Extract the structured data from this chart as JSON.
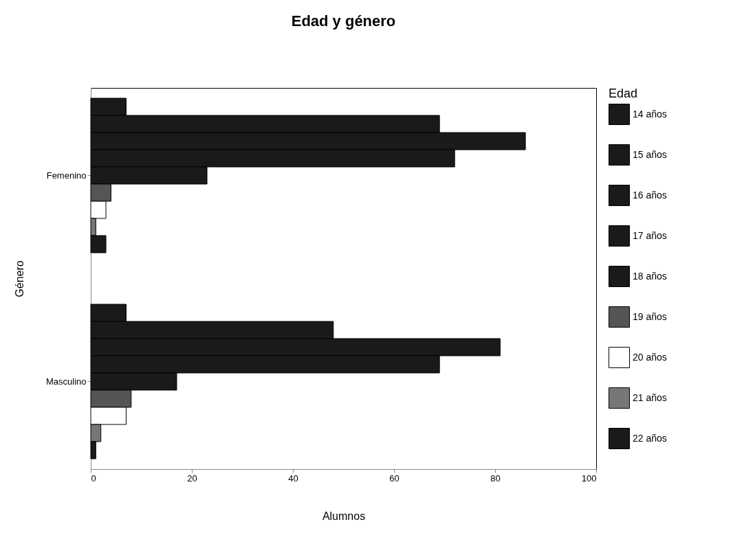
{
  "chart_data": {
    "type": "bar",
    "orientation": "horizontal",
    "title": "Edad y género",
    "xlabel": "Alumnos",
    "ylabel": "Género",
    "legend_title": "Edad",
    "legend": "right",
    "grid": false,
    "categories": [
      "Femenino",
      "Masculino"
    ],
    "xlim": [
      0,
      100
    ],
    "xticks": [
      0,
      20,
      40,
      60,
      80,
      100
    ],
    "series": [
      {
        "name": "14 años",
        "color": "#1a1a1a",
        "values": [
          7,
          7
        ]
      },
      {
        "name": "15 años",
        "color": "#1a1a1a",
        "values": [
          69,
          48
        ]
      },
      {
        "name": "16 años",
        "color": "#1a1a1a",
        "values": [
          86,
          81
        ]
      },
      {
        "name": "17 años",
        "color": "#1a1a1a",
        "values": [
          72,
          69
        ]
      },
      {
        "name": "18 años",
        "color": "#1a1a1a",
        "values": [
          23,
          17
        ]
      },
      {
        "name": "19 años",
        "color": "#555555",
        "values": [
          4,
          8
        ]
      },
      {
        "name": "20 años",
        "color": "#ffffff",
        "values": [
          3,
          7
        ]
      },
      {
        "name": "21 años",
        "color": "#777777",
        "values": [
          1,
          2
        ]
      },
      {
        "name": "22 años",
        "color": "#1a1a1a",
        "values": [
          3,
          1
        ]
      }
    ]
  }
}
